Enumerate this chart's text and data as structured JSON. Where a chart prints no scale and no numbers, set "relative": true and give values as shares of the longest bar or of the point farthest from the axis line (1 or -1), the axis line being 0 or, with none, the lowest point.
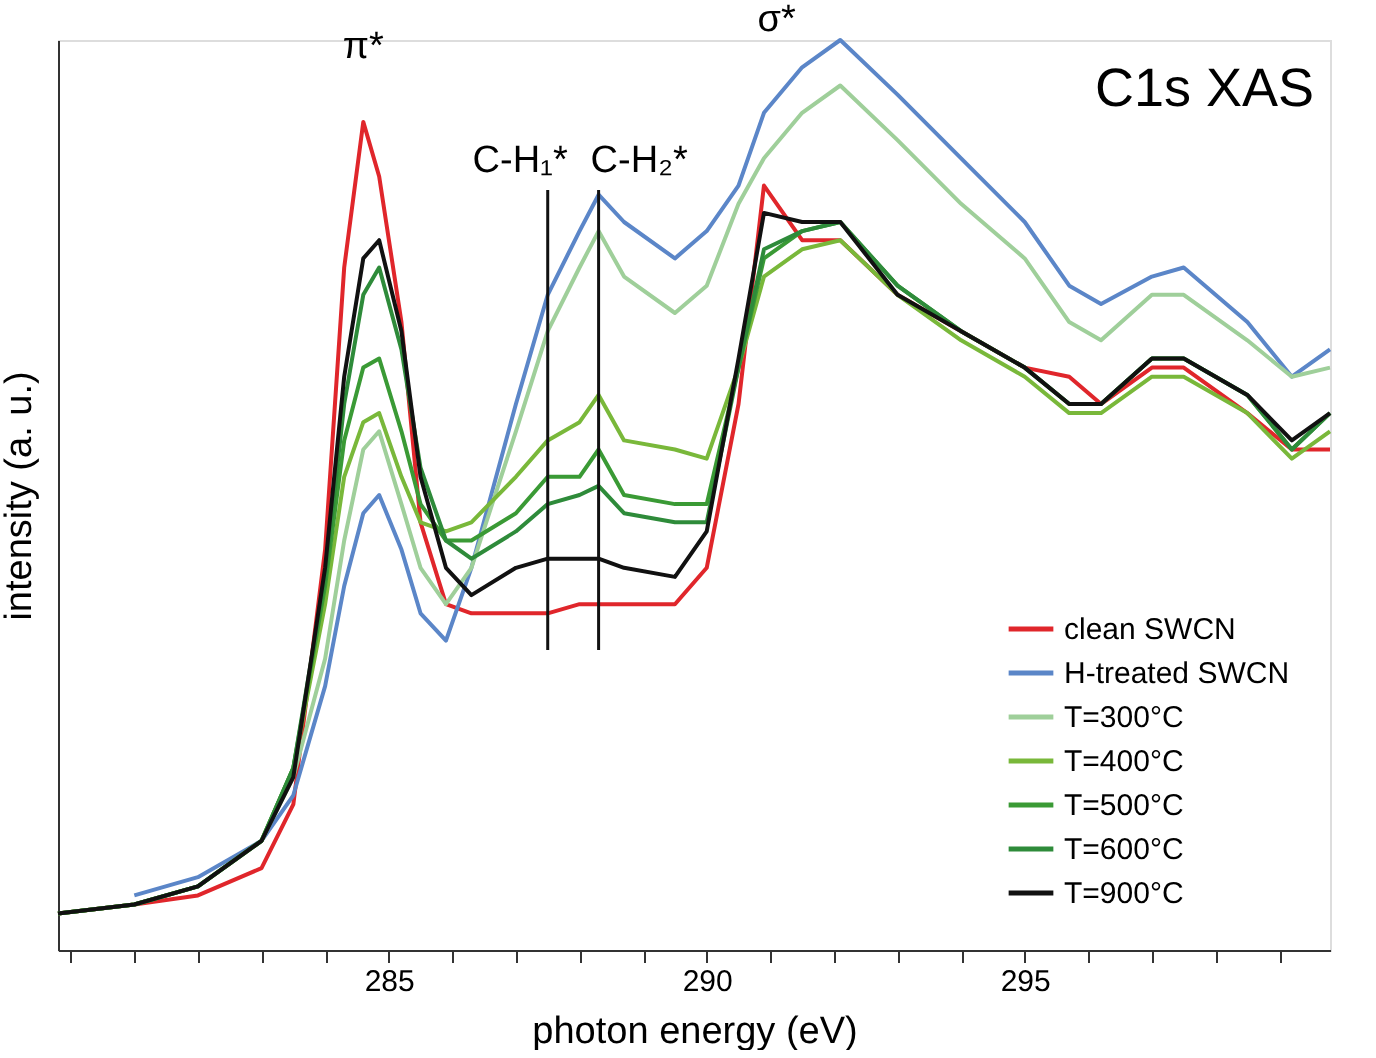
{
  "chart_data": {
    "type": "line",
    "relative": true,
    "xlabel": "photon energy (eV)",
    "ylabel": "intensity (a. u.)",
    "xlim": [
      279.8,
      299.8
    ],
    "xticks": [
      {
        "value": 280,
        "label": null
      },
      {
        "value": 281,
        "label": null
      },
      {
        "value": 282,
        "label": null
      },
      {
        "value": 283,
        "label": null
      },
      {
        "value": 284,
        "label": null
      },
      285,
      {
        "value": 286,
        "label": null
      },
      {
        "value": 287,
        "label": null
      },
      {
        "value": 288,
        "label": null
      },
      {
        "value": 289,
        "label": null
      },
      290,
      {
        "value": 291,
        "label": null
      },
      {
        "value": 292,
        "label": null
      },
      {
        "value": 293,
        "label": null
      },
      {
        "value": 294,
        "label": null
      },
      295,
      {
        "value": 296,
        "label": null
      },
      {
        "value": 297,
        "label": null
      },
      {
        "value": 298,
        "label": null
      },
      {
        "value": 299,
        "label": null
      }
    ],
    "tick_labels": "x",
    "grid": false,
    "legend": "bottom right",
    "line_style": "solid",
    "marker": "none",
    "x": [
      279.8,
      281,
      282,
      283,
      283.5,
      284,
      284.3,
      284.6,
      284.85,
      285.2,
      285.5,
      285.9,
      286.3,
      287,
      287.5,
      288,
      288.3,
      288.7,
      289.5,
      290,
      290.5,
      290.9,
      291.5,
      292.1,
      293,
      294,
      295,
      295.7,
      296.2,
      297,
      297.5,
      298.5,
      299.2,
      299.8
    ],
    "series": [
      {
        "name": "clean SWCN",
        "color": "#e0262b",
        "values": [
          0.04,
          0.05,
          0.06,
          0.09,
          0.16,
          0.44,
          0.75,
          0.91,
          0.85,
          0.69,
          0.47,
          0.38,
          0.37,
          0.37,
          0.37,
          0.38,
          0.38,
          0.38,
          0.38,
          0.42,
          0.6,
          0.84,
          0.78,
          0.78,
          0.72,
          0.68,
          0.64,
          0.63,
          0.6,
          0.64,
          0.64,
          0.59,
          0.55,
          0.55
        ]
      },
      {
        "name": "H-treated SWCN",
        "color": "#5b86c8",
        "values": [
          null,
          0.06,
          0.08,
          0.12,
          0.17,
          0.29,
          0.4,
          0.48,
          0.5,
          0.44,
          0.37,
          0.34,
          0.42,
          0.6,
          0.72,
          0.79,
          0.83,
          0.8,
          0.76,
          0.79,
          0.84,
          0.92,
          0.97,
          1.0,
          0.94,
          0.87,
          0.8,
          0.73,
          0.71,
          0.74,
          0.75,
          0.69,
          0.63,
          0.66
        ]
      },
      {
        "name": "T=300°C",
        "color": "#9fcf9a",
        "values": [
          0.04,
          0.05,
          0.07,
          0.12,
          0.19,
          0.32,
          0.45,
          0.55,
          0.57,
          0.49,
          0.42,
          0.38,
          0.42,
          0.57,
          0.68,
          0.75,
          0.79,
          0.74,
          0.7,
          0.73,
          0.82,
          0.87,
          0.92,
          0.95,
          0.89,
          0.82,
          0.76,
          0.69,
          0.67,
          0.72,
          0.72,
          0.67,
          0.63,
          0.64
        ]
      },
      {
        "name": "T=400°C",
        "color": "#79b83a",
        "values": [
          0.04,
          0.05,
          0.07,
          0.12,
          0.2,
          0.38,
          0.52,
          0.58,
          0.59,
          0.52,
          0.47,
          0.46,
          0.47,
          0.52,
          0.56,
          0.58,
          0.61,
          0.56,
          0.55,
          0.54,
          0.64,
          0.74,
          0.77,
          0.78,
          0.72,
          0.67,
          0.63,
          0.59,
          0.59,
          0.63,
          0.63,
          0.59,
          0.54,
          0.57
        ]
      },
      {
        "name": "T=500°C",
        "color": "#3a9a35",
        "values": [
          0.04,
          0.05,
          0.07,
          0.12,
          0.2,
          0.4,
          0.56,
          0.64,
          0.65,
          0.57,
          0.49,
          0.45,
          0.45,
          0.48,
          0.52,
          0.52,
          0.55,
          0.5,
          0.49,
          0.49,
          0.64,
          0.76,
          0.79,
          0.8,
          0.73,
          0.68,
          0.64,
          0.6,
          0.6,
          0.65,
          0.65,
          0.61,
          0.55,
          0.59
        ]
      },
      {
        "name": "T=600°C",
        "color": "#2e8b3a",
        "values": [
          0.04,
          0.05,
          0.07,
          0.12,
          0.2,
          0.41,
          0.6,
          0.72,
          0.75,
          0.66,
          0.53,
          0.45,
          0.43,
          0.46,
          0.49,
          0.5,
          0.51,
          0.48,
          0.47,
          0.47,
          0.64,
          0.77,
          0.79,
          0.8,
          0.73,
          0.68,
          0.64,
          0.6,
          0.6,
          0.65,
          0.65,
          0.61,
          0.55,
          0.59
        ]
      },
      {
        "name": "T=900°C",
        "color": "#111111",
        "values": [
          0.04,
          0.05,
          0.07,
          0.12,
          0.19,
          0.42,
          0.63,
          0.76,
          0.78,
          0.68,
          0.52,
          0.42,
          0.39,
          0.42,
          0.43,
          0.43,
          0.43,
          0.42,
          0.41,
          0.46,
          0.65,
          0.81,
          0.8,
          0.8,
          0.72,
          0.68,
          0.64,
          0.6,
          0.6,
          0.65,
          0.65,
          0.61,
          0.56,
          0.59
        ]
      }
    ],
    "ref_lines": [
      {
        "axis": "x",
        "value": 287.5,
        "label": "C-H₁*",
        "color": "#111111"
      },
      {
        "axis": "x",
        "value": 288.3,
        "label": "C-H₂*",
        "color": "#111111"
      }
    ],
    "annotations": [
      {
        "text": "π*",
        "x": 284.6,
        "y": 0.91
      },
      {
        "text": "σ*",
        "x": 291.1,
        "y": 0.94
      },
      "C1s XAS"
    ]
  }
}
